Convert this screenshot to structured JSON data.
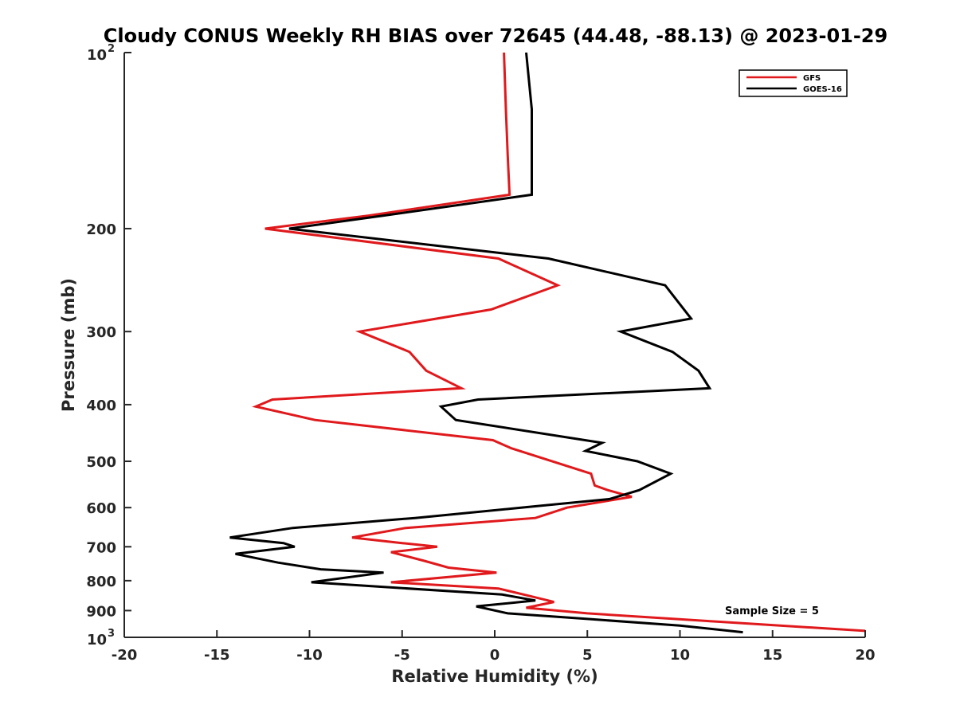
{
  "chart_data": {
    "type": "line",
    "title": "Cloudy CONUS Weekly RH BIAS over 72645 (44.48, -88.13) @ 2023-01-29",
    "xlabel": "Relative Humidity (%)",
    "ylabel": "Pressure (mb)",
    "xlim": [
      -20,
      20
    ],
    "ylim": [
      100,
      1000
    ],
    "y_scale": "log",
    "y_reversed": true,
    "grid": false,
    "legend_position": "top-right",
    "x_ticks": [
      "-20",
      "-15",
      "-10",
      "-5",
      "0",
      "5",
      "10",
      "15",
      "20"
    ],
    "x_tick_values": [
      -20,
      -15,
      -10,
      -5,
      0,
      5,
      10,
      15,
      20
    ],
    "y_ticks": [
      {
        "value": 100,
        "label": "10",
        "sup": "2"
      },
      {
        "value": 200,
        "label": "200",
        "sup": ""
      },
      {
        "value": 300,
        "label": "300",
        "sup": ""
      },
      {
        "value": 400,
        "label": "400",
        "sup": ""
      },
      {
        "value": 500,
        "label": "500",
        "sup": ""
      },
      {
        "value": 600,
        "label": "600",
        "sup": ""
      },
      {
        "value": 700,
        "label": "700",
        "sup": ""
      },
      {
        "value": 800,
        "label": "800",
        "sup": ""
      },
      {
        "value": 900,
        "label": "900",
        "sup": ""
      },
      {
        "value": 1000,
        "label": "10",
        "sup": "3"
      }
    ],
    "annotation": "Sample Size = 5",
    "series": [
      {
        "name": "GFS",
        "color": "#e0191c",
        "points": [
          {
            "x": 0.5,
            "y": 100
          },
          {
            "x": 0.6,
            "y": 125
          },
          {
            "x": 0.7,
            "y": 150
          },
          {
            "x": 0.8,
            "y": 175
          },
          {
            "x": -6.8,
            "y": 190
          },
          {
            "x": -12.4,
            "y": 200
          },
          {
            "x": 0.2,
            "y": 225
          },
          {
            "x": 3.4,
            "y": 250
          },
          {
            "x": -0.2,
            "y": 275
          },
          {
            "x": -7.3,
            "y": 300
          },
          {
            "x": -4.6,
            "y": 325
          },
          {
            "x": -3.7,
            "y": 350
          },
          {
            "x": -1.8,
            "y": 375
          },
          {
            "x": -12.0,
            "y": 392
          },
          {
            "x": -12.9,
            "y": 403
          },
          {
            "x": -9.7,
            "y": 425
          },
          {
            "x": -0.1,
            "y": 460
          },
          {
            "x": 0.9,
            "y": 475
          },
          {
            "x": 5.2,
            "y": 525
          },
          {
            "x": 5.4,
            "y": 550
          },
          {
            "x": 6.1,
            "y": 560
          },
          {
            "x": 7.4,
            "y": 575
          },
          {
            "x": 3.9,
            "y": 600
          },
          {
            "x": 2.2,
            "y": 625
          },
          {
            "x": -4.8,
            "y": 650
          },
          {
            "x": -7.7,
            "y": 675
          },
          {
            "x": -5.0,
            "y": 690
          },
          {
            "x": -3.1,
            "y": 700
          },
          {
            "x": -5.6,
            "y": 715
          },
          {
            "x": -3.8,
            "y": 740
          },
          {
            "x": -2.5,
            "y": 760
          },
          {
            "x": 0.1,
            "y": 775
          },
          {
            "x": -5.6,
            "y": 805
          },
          {
            "x": 0.2,
            "y": 825
          },
          {
            "x": 1.9,
            "y": 850
          },
          {
            "x": 3.2,
            "y": 870
          },
          {
            "x": 1.7,
            "y": 890
          },
          {
            "x": 5.0,
            "y": 910
          },
          {
            "x": 12.0,
            "y": 940
          },
          {
            "x": 20.0,
            "y": 975
          }
        ]
      },
      {
        "name": "GOES-16",
        "color": "#000000",
        "points": [
          {
            "x": 1.7,
            "y": 100
          },
          {
            "x": 2.0,
            "y": 125
          },
          {
            "x": 2.0,
            "y": 150
          },
          {
            "x": 2.0,
            "y": 175
          },
          {
            "x": -6.0,
            "y": 190
          },
          {
            "x": -11.1,
            "y": 200
          },
          {
            "x": 2.9,
            "y": 225
          },
          {
            "x": 9.2,
            "y": 250
          },
          {
            "x": 10.6,
            "y": 285
          },
          {
            "x": 6.8,
            "y": 300
          },
          {
            "x": 9.6,
            "y": 325
          },
          {
            "x": 11.0,
            "y": 350
          },
          {
            "x": 11.6,
            "y": 375
          },
          {
            "x": -0.9,
            "y": 392
          },
          {
            "x": -2.9,
            "y": 403
          },
          {
            "x": -2.1,
            "y": 425
          },
          {
            "x": 5.8,
            "y": 465
          },
          {
            "x": 4.9,
            "y": 480
          },
          {
            "x": 7.7,
            "y": 500
          },
          {
            "x": 9.5,
            "y": 525
          },
          {
            "x": 7.8,
            "y": 560
          },
          {
            "x": 6.2,
            "y": 580
          },
          {
            "x": -4.3,
            "y": 625
          },
          {
            "x": -10.9,
            "y": 650
          },
          {
            "x": -14.3,
            "y": 675
          },
          {
            "x": -11.4,
            "y": 690
          },
          {
            "x": -10.8,
            "y": 700
          },
          {
            "x": -14.0,
            "y": 720
          },
          {
            "x": -11.7,
            "y": 745
          },
          {
            "x": -9.4,
            "y": 765
          },
          {
            "x": -6.0,
            "y": 775
          },
          {
            "x": -9.9,
            "y": 805
          },
          {
            "x": 0.4,
            "y": 845
          },
          {
            "x": 2.2,
            "y": 865
          },
          {
            "x": -1.0,
            "y": 885
          },
          {
            "x": 0.7,
            "y": 910
          },
          {
            "x": 5.0,
            "y": 930
          },
          {
            "x": 10.0,
            "y": 955
          },
          {
            "x": 13.4,
            "y": 980
          }
        ]
      }
    ]
  }
}
